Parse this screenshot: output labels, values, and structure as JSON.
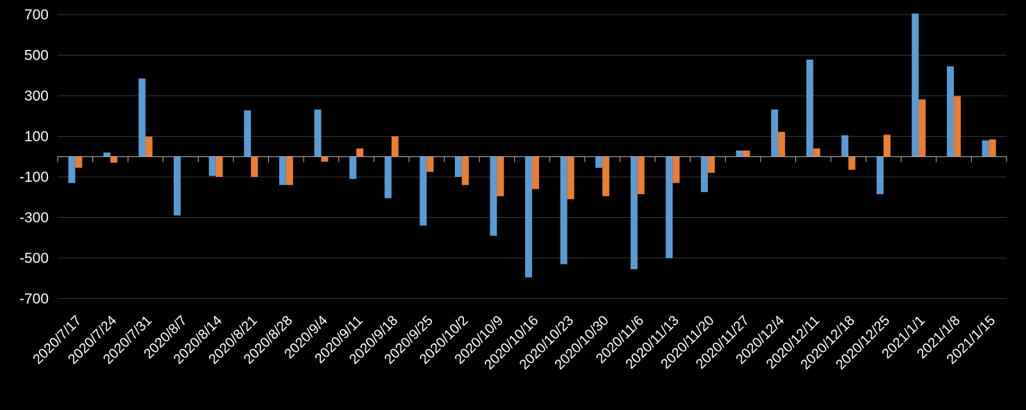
{
  "chart_data": {
    "type": "bar",
    "categories": [
      "2020/7/17",
      "2020/7/24",
      "2020/7/31",
      "2020/8/7",
      "2020/8/14",
      "2020/8/21",
      "2020/8/28",
      "2020/9/4",
      "2020/9/11",
      "2020/9/18",
      "2020/9/25",
      "2020/10/2",
      "2020/10/9",
      "2020/10/16",
      "2020/10/23",
      "2020/10/30",
      "2020/11/6",
      "2020/11/13",
      "2020/11/20",
      "2020/11/27",
      "2020/12/4",
      "2020/12/11",
      "2020/12/18",
      "2020/12/25",
      "2021/1/1",
      "2021/1/8",
      "2021/1/15"
    ],
    "series": [
      {
        "color": "#5b9bd5",
        "values": [
          -130,
          20,
          385,
          -290,
          -95,
          228,
          -140,
          232,
          -110,
          -205,
          -340,
          -100,
          -390,
          -595,
          -530,
          -55,
          -555,
          -500,
          -175,
          30,
          232,
          478,
          105,
          -185,
          705,
          445,
          80
        ]
      },
      {
        "color": "#ed7d31",
        "values": [
          -55,
          -30,
          98,
          0,
          -100,
          -100,
          -140,
          -25,
          40,
          100,
          -75,
          -140,
          -195,
          -160,
          -210,
          -195,
          -185,
          -130,
          -80,
          30,
          122,
          40,
          -65,
          108,
          282,
          298,
          85
        ]
      }
    ],
    "yticks": [
      700,
      500,
      300,
      100,
      -100,
      -300,
      -500,
      -700
    ],
    "ylim": [
      -800,
      700
    ],
    "grid": true,
    "background": "#000000"
  }
}
